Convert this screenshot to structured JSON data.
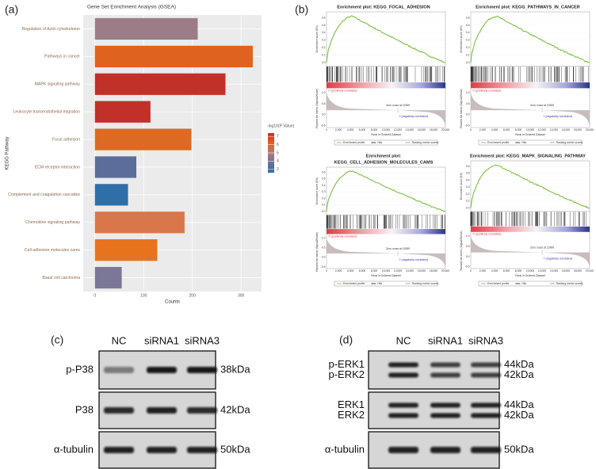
{
  "panel_labels": [
    "(a)",
    "(b)",
    "(c)",
    "(d)"
  ],
  "chart_data": {
    "type": "bar",
    "orientation": "horizontal",
    "title": "Gene Set Enrichment Analysis (GSEA)",
    "x_label": "Counts",
    "y_label": "KEGG Pathway",
    "categories": [
      "Regulation of Actin cytoskeleton",
      "Pathways in cancer",
      "MAPK signaling pathway",
      "Leukocyte transendothelial migration",
      "Focal adhesion",
      "ECM receptor interaction",
      "Complement and coagulation cascades",
      "Chemokine signaling pathway",
      "Cell adhesion molecules cams",
      "Basal cell carcinoma"
    ],
    "values": [
      211,
      324,
      268,
      114,
      198,
      85,
      68,
      184,
      128,
      55
    ],
    "colors": [
      "#9c7c86",
      "#e0621f",
      "#c2302a",
      "#c2302a",
      "#dc6a22",
      "#5b6e9b",
      "#2f6fa7",
      "#d9764a",
      "#e8731e",
      "#7b7797"
    ],
    "xlim": [
      -24,
      342
    ],
    "xticks": [
      0,
      100,
      200,
      300
    ],
    "grid": true,
    "legend": {
      "title": "-log10(P Value)",
      "position": "right",
      "lim": [
        2.6,
        7.4
      ],
      "ticks": [
        3,
        4,
        5,
        6,
        7
      ],
      "colors": [
        "#c2302a",
        "#e0621f",
        "#b07a7a",
        "#6a7298",
        "#2f6fa7"
      ]
    }
  },
  "gsea": {
    "plots": [
      {
        "title_lines": [
          "Enrichment plot: KEGG_FOCAL_ADHESION"
        ]
      },
      {
        "title_lines": [
          "Enrichment plot: KEGG_PATHWAYS_IN_CANCER"
        ]
      },
      {
        "title_lines": [
          "Enrichment plot:",
          "KEGG_CELL_ADHESION_MOLECULES_CAMS"
        ]
      },
      {
        "title_lines": [
          "Enrichment plot: KEGG_MAPK_SIGNALING_PATHWAY"
        ]
      }
    ],
    "es_label": "Enrichment score (ES)",
    "metric_label": "Ranked list metric (Signal2Noise)",
    "x_label": "Rank in Ordered Dataset",
    "pos_label": "'h' (positively correlated)",
    "neg_label": "'l' (negatively correlated)",
    "zero_cross": "Zero cross at 11989",
    "es_ticks": [
      "0.0",
      "0.1",
      "0.2",
      "0.3",
      "0.4",
      "0.5",
      "0.6"
    ],
    "metric_ticks": [
      "1.0",
      "0.5",
      "0.0",
      "-0.5"
    ],
    "x_ticks": [
      "0",
      "2,000",
      "4,000",
      "6,000",
      "8,000",
      "10,000",
      "12,000",
      "14,000",
      "16,000",
      "18,000",
      "20,000"
    ],
    "legend": [
      "Enrichment profile",
      "Hits",
      "Ranking metric scores"
    ]
  },
  "blots": [
    {
      "columns": [
        "NC",
        "siRNA1",
        "siRNA3"
      ],
      "rows": [
        {
          "labels": [
            "p-P38"
          ],
          "sizes": [
            "38kDa"
          ]
        },
        {
          "labels": [
            "P38"
          ],
          "sizes": [
            "42kDa"
          ]
        },
        {
          "labels": [
            "α-tubulin"
          ],
          "sizes": [
            "50kDa"
          ]
        }
      ]
    },
    {
      "columns": [
        "NC",
        "siRNA1",
        "siRNA3"
      ],
      "rows": [
        {
          "labels": [
            "p-ERK1",
            "p-ERK2"
          ],
          "sizes": [
            "44kDa",
            "42kDa"
          ]
        },
        {
          "labels": [
            "ERK1",
            "ERK2"
          ],
          "sizes": [
            "44kDa",
            "42kDa"
          ]
        },
        {
          "labels": [
            "α-tubulin"
          ],
          "sizes": [
            "50kDa"
          ]
        }
      ]
    }
  ]
}
